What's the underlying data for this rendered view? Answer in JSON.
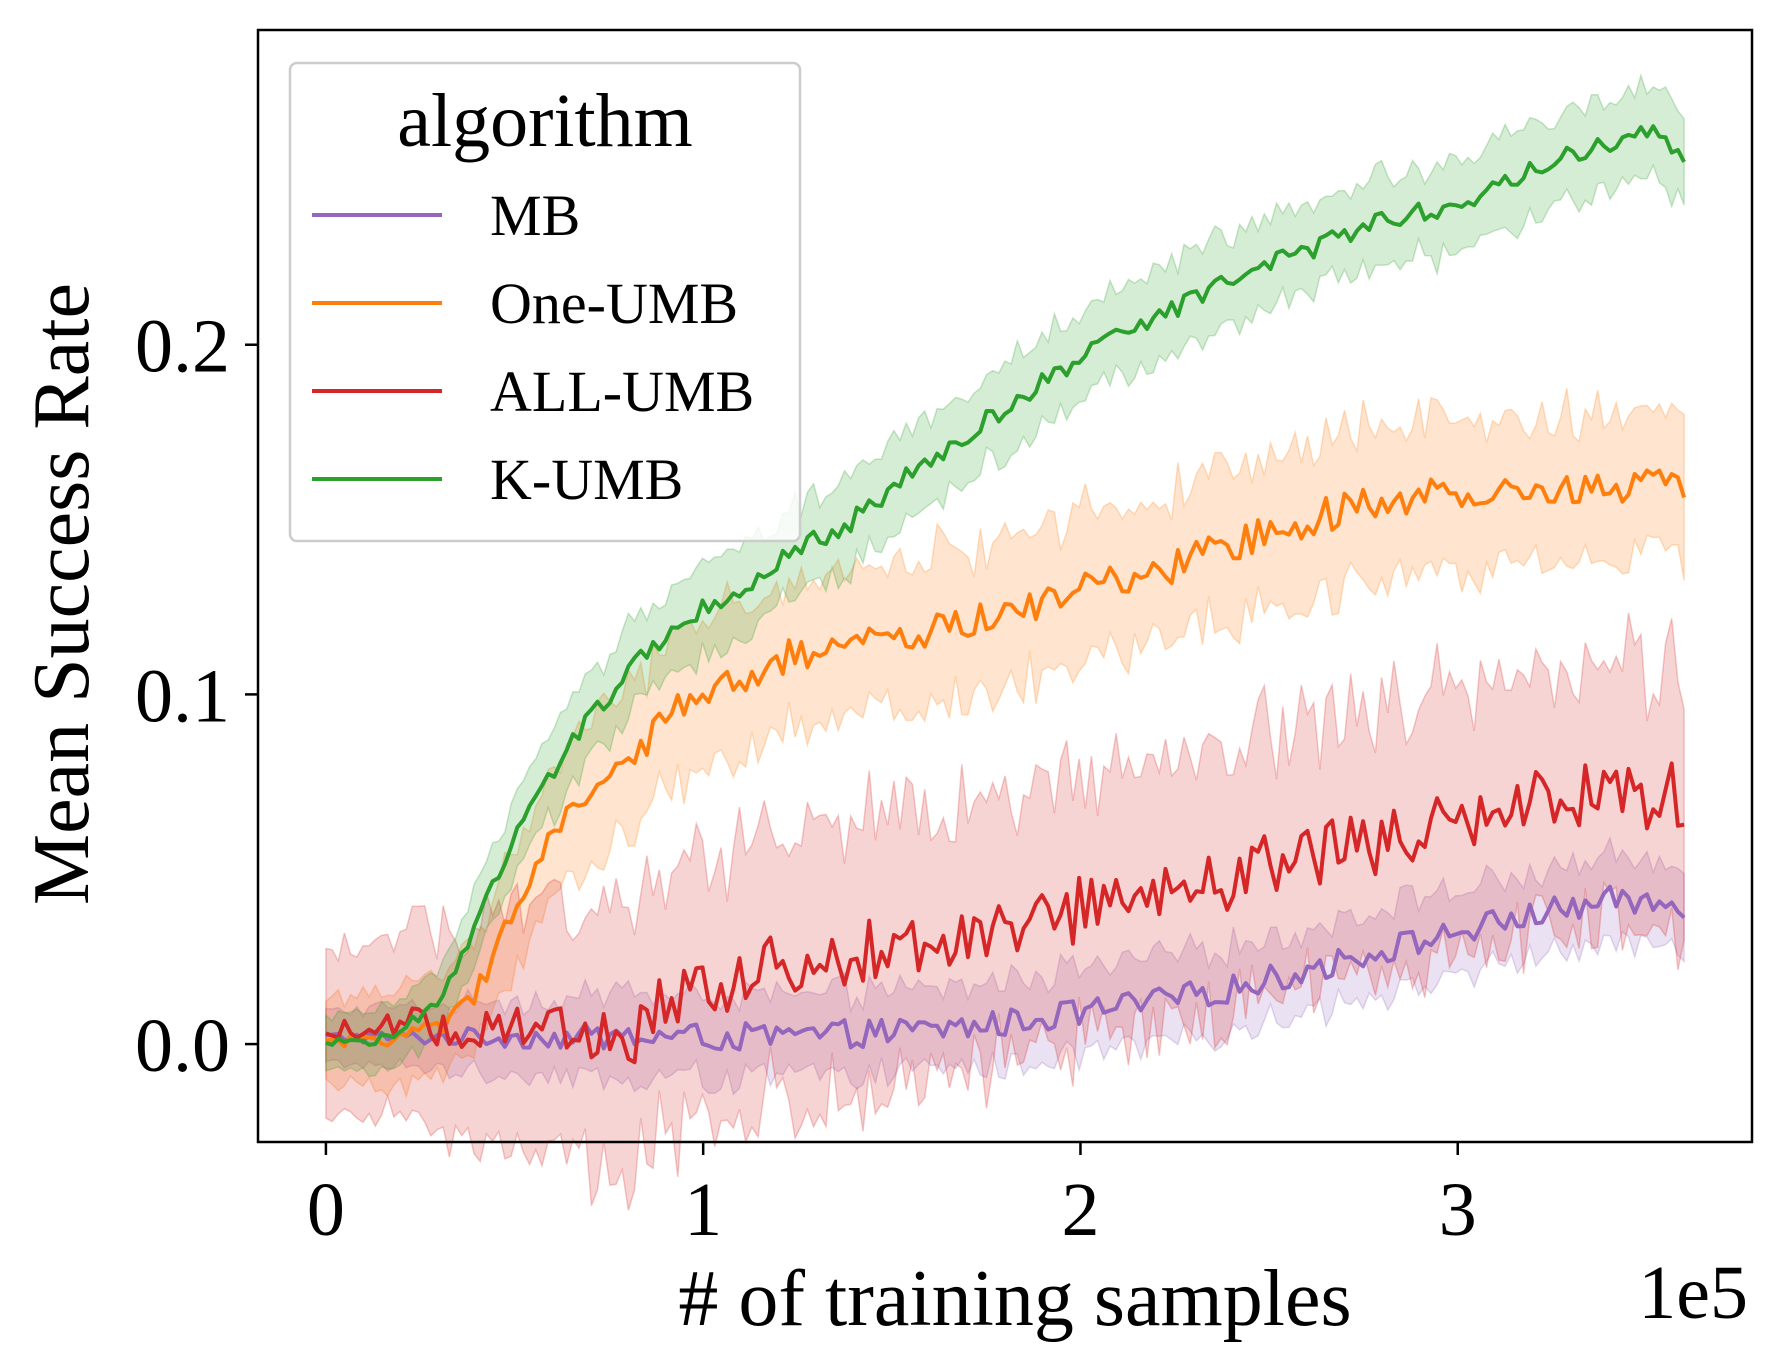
{
  "chart_data": {
    "type": "line",
    "xlabel": "# of training samples",
    "ylabel": "Mean Success Rate",
    "x_multiplier_label": "1e5",
    "xlim": [
      -0.18,
      3.78
    ],
    "ylim": [
      -0.028,
      0.29
    ],
    "x_ticks": [
      0,
      1,
      2,
      3
    ],
    "x_tick_labels": [
      "0",
      "1",
      "2",
      "3"
    ],
    "y_ticks": [
      0.0,
      0.1,
      0.2
    ],
    "y_tick_labels": [
      "0.0",
      "0.1",
      "0.2"
    ],
    "grid": false,
    "legend": {
      "title": "algorithm",
      "position": "top-left"
    },
    "x_range": [
      0,
      3.6
    ],
    "series": [
      {
        "name": "MB",
        "color": "#9467bd",
        "points": [
          [
            0,
            0.002
          ],
          [
            0.2,
            0.002
          ],
          [
            0.4,
            0.002
          ],
          [
            0.6,
            0.002
          ],
          [
            0.8,
            0.002
          ],
          [
            1.0,
            0.002
          ],
          [
            1.2,
            0.002
          ],
          [
            1.4,
            0.003
          ],
          [
            1.6,
            0.004
          ],
          [
            1.8,
            0.006
          ],
          [
            2.0,
            0.009
          ],
          [
            2.2,
            0.012
          ],
          [
            2.4,
            0.016
          ],
          [
            2.6,
            0.021
          ],
          [
            2.8,
            0.027
          ],
          [
            3.0,
            0.032
          ],
          [
            3.2,
            0.037
          ],
          [
            3.4,
            0.041
          ],
          [
            3.6,
            0.04
          ]
        ],
        "band": 0.01,
        "noise": 0.004,
        "band_noise": 0.004
      },
      {
        "name": "One-UMB",
        "color": "#ff7f0e",
        "points": [
          [
            0,
            0.001
          ],
          [
            0.2,
            0.002
          ],
          [
            0.3,
            0.004
          ],
          [
            0.4,
            0.015
          ],
          [
            0.5,
            0.04
          ],
          [
            0.6,
            0.058
          ],
          [
            0.7,
            0.072
          ],
          [
            0.8,
            0.082
          ],
          [
            0.9,
            0.093
          ],
          [
            1.0,
            0.1
          ],
          [
            1.2,
            0.11
          ],
          [
            1.4,
            0.114
          ],
          [
            1.6,
            0.118
          ],
          [
            1.8,
            0.123
          ],
          [
            2.0,
            0.13
          ],
          [
            2.2,
            0.135
          ],
          [
            2.4,
            0.143
          ],
          [
            2.6,
            0.15
          ],
          [
            2.8,
            0.155
          ],
          [
            3.0,
            0.158
          ],
          [
            3.2,
            0.159
          ],
          [
            3.4,
            0.159
          ],
          [
            3.6,
            0.161
          ]
        ],
        "band": 0.016,
        "noise": 0.005,
        "band_noise": 0.01
      },
      {
        "name": "ALL-UMB",
        "color": "#d62728",
        "points": [
          [
            0,
            0.004
          ],
          [
            0.2,
            0.006
          ],
          [
            0.4,
            0.003
          ],
          [
            0.6,
            0.003
          ],
          [
            0.8,
            0.003
          ],
          [
            0.9,
            0.01
          ],
          [
            1.0,
            0.017
          ],
          [
            1.2,
            0.024
          ],
          [
            1.4,
            0.027
          ],
          [
            1.6,
            0.031
          ],
          [
            1.8,
            0.035
          ],
          [
            2.0,
            0.039
          ],
          [
            2.2,
            0.044
          ],
          [
            2.4,
            0.048
          ],
          [
            2.6,
            0.052
          ],
          [
            2.8,
            0.058
          ],
          [
            3.0,
            0.064
          ],
          [
            3.2,
            0.068
          ],
          [
            3.4,
            0.071
          ],
          [
            3.6,
            0.072
          ]
        ],
        "band": 0.03,
        "noise": 0.01,
        "band_noise": 0.015
      },
      {
        "name": "K-UMB",
        "color": "#2ca02c",
        "points": [
          [
            0,
            0.001
          ],
          [
            0.1,
            0.0
          ],
          [
            0.2,
            0.004
          ],
          [
            0.3,
            0.012
          ],
          [
            0.4,
            0.035
          ],
          [
            0.5,
            0.06
          ],
          [
            0.6,
            0.078
          ],
          [
            0.7,
            0.093
          ],
          [
            0.8,
            0.106
          ],
          [
            0.9,
            0.117
          ],
          [
            1.0,
            0.124
          ],
          [
            1.2,
            0.138
          ],
          [
            1.4,
            0.15
          ],
          [
            1.6,
            0.167
          ],
          [
            1.8,
            0.182
          ],
          [
            2.0,
            0.196
          ],
          [
            2.2,
            0.208
          ],
          [
            2.4,
            0.218
          ],
          [
            2.6,
            0.227
          ],
          [
            2.8,
            0.235
          ],
          [
            3.0,
            0.24
          ],
          [
            3.2,
            0.25
          ],
          [
            3.4,
            0.258
          ],
          [
            3.5,
            0.262
          ],
          [
            3.6,
            0.255
          ]
        ],
        "band": 0.01,
        "noise": 0.003,
        "band_noise": 0.006
      }
    ]
  }
}
